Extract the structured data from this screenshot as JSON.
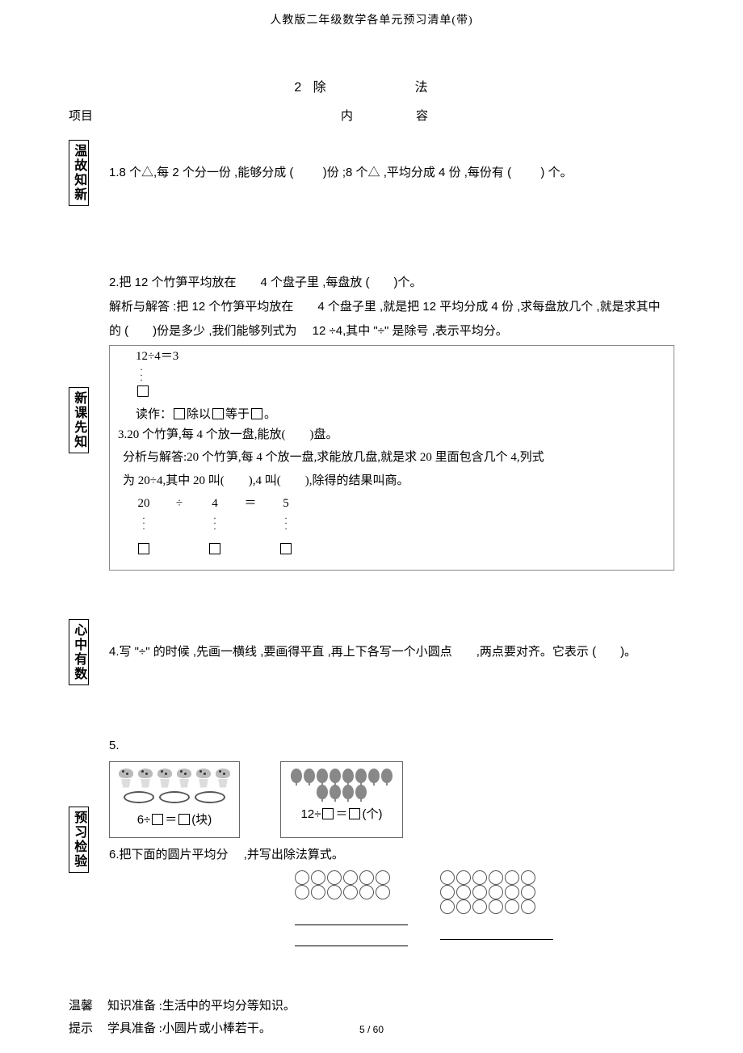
{
  "running_header": "人教版二年级数学各单元预习清单(带)",
  "heading": {
    "number": "2",
    "title": "除　　法"
  },
  "columns": {
    "c1": "项目",
    "c2": "内　　容"
  },
  "sec1": {
    "label": "温故知新",
    "q1_a": "1.8 个△,每 2 个分一份 ,能够分成 (",
    "q1_b": ")份 ;8 个△ ,平均分成  4 份 ,每份有 (",
    "q1_c": ") 个。"
  },
  "sec2": {
    "label": "新课先知",
    "q2_line1": "2.把 12 个竹笋平均放在　　4 个盘子里 ,每盘放 (　　)个。",
    "q2_line2": "解析与解答  :把 12 个竹笋平均放在　　4 个盘子里 ,就是把 12 平均分成  4 份 ,求每盘放几个  ,就是求其中",
    "q2_line3": "的 (　　)份是多少 ,我们能够列式为　 12 ÷4,其中 \"÷\" 是除号 ,表示平均分。",
    "eq_top": "12÷4＝3",
    "read_a": "读作：",
    "read_b": "除以",
    "read_c": "等于",
    "read_d": "。",
    "q3_line1": "3.20 个竹笋,每 4 个放一盘,能放(　　)盘。",
    "q3_line2": "分析与解答:20 个竹笋,每 4 个放一盘,求能放几盘,就是求 20 里面包含几个 4,列式",
    "q3_line3": "为 20÷4,其中 20 叫(　　),4 叫(　　),除得的结果叫商。",
    "eq2": {
      "d": "20",
      "op": "÷",
      "dv": "4",
      "eq": "＝",
      "q": "5"
    }
  },
  "sec3": {
    "label": "心中有数",
    "q4": "4.写 \"÷\" 的时候 ,先画一横线  ,要画得平直 ,再上下各写一个小圆点　　,两点要对齐。它表示   (　　)。"
  },
  "sec4": {
    "label": "预习检验",
    "q5": "5.",
    "cap_a1": "6÷",
    "cap_a2": "＝",
    "cap_a3": "(块)",
    "cap_b1": "12÷",
    "cap_b2": "＝",
    "cap_b3": "(个)",
    "q6": "6.把下面的圆片平均分　 ,并写出除法算式。",
    "grid1": {
      "rows": 2,
      "cols": 6
    },
    "grid2": {
      "rows": 3,
      "cols": 6
    }
  },
  "tips": {
    "l1": "温馨",
    "l2": "提示",
    "t1": "知识准备 :生活中的平均分等知识。",
    "t2": "学具准备 :小圆片或小棒若干。"
  },
  "footer": "5 / 60",
  "colors": {
    "text": "#000000",
    "bg": "#ffffff",
    "border": "#888888"
  }
}
